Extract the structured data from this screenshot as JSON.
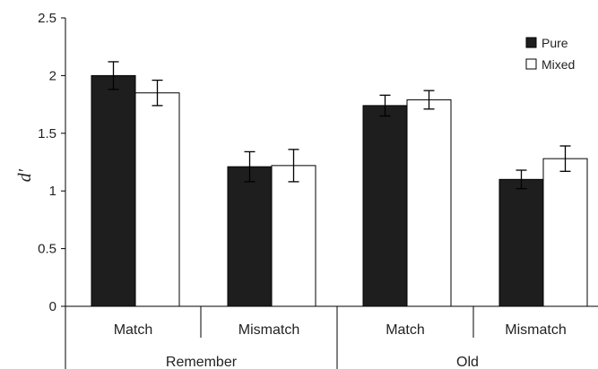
{
  "chart_data": {
    "type": "bar",
    "title": "",
    "ylabel": "d′",
    "ylim": [
      0,
      2.5
    ],
    "yticks": [
      "0",
      "0.5",
      "1",
      "1.5",
      "2",
      "2.5"
    ],
    "grid": false,
    "legend_position": "top-right",
    "groups": [
      "Remember",
      "Old"
    ],
    "categories": [
      "Match",
      "Mismatch",
      "Match",
      "Mismatch"
    ],
    "series": [
      {
        "name": "Pure",
        "color": "#1e1e1e",
        "values": [
          2.0,
          1.21,
          1.74,
          1.1
        ],
        "errors": [
          0.12,
          0.13,
          0.09,
          0.08
        ]
      },
      {
        "name": "Mixed",
        "color": "#ffffff",
        "values": [
          1.85,
          1.22,
          1.79,
          1.28
        ],
        "errors": [
          0.11,
          0.14,
          0.08,
          0.11
        ]
      }
    ]
  }
}
